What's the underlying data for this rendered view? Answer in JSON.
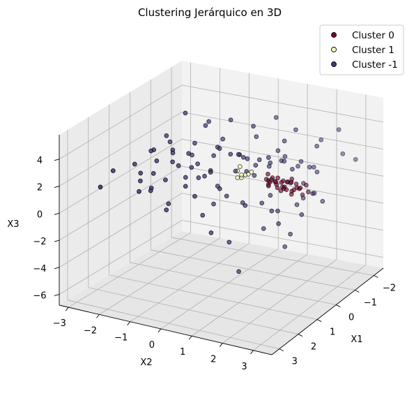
{
  "chart_data": {
    "type": "scatter",
    "title": "Clustering Jerárquico en 3D",
    "xlabel": "X1",
    "ylabel": "X2",
    "zlabel": "X3",
    "xlim": [
      -2.5,
      3.4
    ],
    "ylim": [
      -3.3,
      3.6
    ],
    "zlim": [
      -6.8,
      5.8
    ],
    "xticks": [
      -2,
      -1,
      0,
      1,
      2,
      3
    ],
    "yticks": [
      -3,
      -2,
      -1,
      0,
      1,
      2,
      3
    ],
    "zticks": [
      -6,
      -4,
      -2,
      0,
      2,
      4
    ],
    "xtick_labels": [
      "−2",
      "−1",
      "0",
      "1",
      "2",
      "3"
    ],
    "ytick_labels": [
      "−3",
      "−2",
      "−1",
      "0",
      "1",
      "2",
      "3"
    ],
    "ztick_labels": [
      "−6",
      "−4",
      "−2",
      "0",
      "2",
      "4"
    ],
    "legend_position": "top-right",
    "grid": true,
    "series": [
      {
        "name": "Cluster 0",
        "color": "#7f0030",
        "points": [
          [
            0.05,
            1.3,
            1.5
          ],
          [
            0.1,
            1.5,
            1.6
          ],
          [
            0.15,
            1.7,
            1.4
          ],
          [
            0.2,
            1.9,
            1.7
          ],
          [
            0.25,
            2.1,
            1.3
          ],
          [
            0.05,
            2.3,
            1.6
          ],
          [
            0.1,
            1.4,
            1.2
          ],
          [
            0.2,
            1.6,
            1.9
          ],
          [
            -0.05,
            1.8,
            1.5
          ],
          [
            0.3,
            2.0,
            1.5
          ],
          [
            0.15,
            2.2,
            1.8
          ],
          [
            0.0,
            2.4,
            1.3
          ],
          [
            0.25,
            1.5,
            1.7
          ],
          [
            0.1,
            1.7,
            1.1
          ],
          [
            -0.1,
            1.9,
            1.4
          ],
          [
            0.35,
            2.1,
            1.6
          ],
          [
            0.2,
            2.5,
            1.5
          ],
          [
            0.05,
            1.35,
            1.9
          ],
          [
            0.15,
            1.95,
            1.2
          ],
          [
            0.25,
            2.35,
            1.4
          ],
          [
            -0.05,
            1.55,
            1.3
          ],
          [
            0.3,
            1.75,
            1.8
          ],
          [
            0.1,
            2.05,
            1.7
          ],
          [
            0.2,
            2.25,
            1.2
          ],
          [
            0.0,
            2.6,
            1.6
          ],
          [
            0.4,
            1.6,
            1.5
          ],
          [
            0.15,
            1.85,
            1.0
          ],
          [
            0.05,
            2.15,
            1.9
          ],
          [
            0.25,
            2.45,
            1.6
          ],
          [
            0.1,
            1.45,
            1.4
          ],
          [
            0.3,
            2.3,
            1.1
          ],
          [
            0.35,
            2.7,
            1.3
          ],
          [
            0.0,
            1.65,
            1.7
          ],
          [
            0.2,
            2.8,
            1.4
          ]
        ]
      },
      {
        "name": "Cluster 1",
        "color": "#ffffbf",
        "points": [
          [
            0.0,
            0.3,
            1.6
          ],
          [
            0.1,
            0.5,
            1.5
          ],
          [
            0.2,
            0.7,
            1.7
          ],
          [
            -0.1,
            0.6,
            1.4
          ],
          [
            0.15,
            0.4,
            1.3
          ],
          [
            0.05,
            0.8,
            1.8
          ],
          [
            -0.05,
            0.35,
            1.9
          ],
          [
            0.25,
            0.6,
            1.5
          ]
        ]
      },
      {
        "name": "Cluster -1",
        "color": "#3b3a80",
        "points": [
          [
            0.2,
            -3.0,
            0.8
          ],
          [
            -0.3,
            -2.8,
            1.4
          ],
          [
            0.5,
            -2.6,
            0.6
          ],
          [
            0.0,
            -2.5,
            1.9
          ],
          [
            0.8,
            -2.4,
            0.4
          ],
          [
            -0.5,
            -2.3,
            2.1
          ],
          [
            0.3,
            -2.2,
            1.5
          ],
          [
            0.6,
            -2.1,
            0.9
          ],
          [
            -0.2,
            -2.0,
            1.7
          ],
          [
            1.0,
            -1.9,
            0.3
          ],
          [
            0.1,
            -1.8,
            2.3
          ],
          [
            -0.7,
            -1.7,
            1.2
          ],
          [
            0.4,
            -1.6,
            1.8
          ],
          [
            0.9,
            -1.5,
            1.0
          ],
          [
            -0.4,
            -1.4,
            2.5
          ],
          [
            0.2,
            -1.3,
            0.6
          ],
          [
            0.7,
            -1.2,
            2.0
          ],
          [
            -0.1,
            -1.1,
            1.4
          ],
          [
            0.5,
            -1.0,
            2.8
          ],
          [
            -0.6,
            -0.9,
            1.6
          ],
          [
            0.3,
            -0.8,
            0.9
          ],
          [
            0.8,
            -0.7,
            2.2
          ],
          [
            0.0,
            -0.6,
            1.1
          ],
          [
            -0.3,
            -0.5,
            2.6
          ],
          [
            0.6,
            -0.4,
            1.5
          ],
          [
            0.1,
            -0.3,
            3.2
          ],
          [
            -0.8,
            -0.2,
            1.8
          ],
          [
            0.4,
            -0.1,
            0.7
          ],
          [
            0.9,
            0.0,
            2.4
          ],
          [
            -0.2,
            0.1,
            1.3
          ],
          [
            0.2,
            0.2,
            3.0
          ],
          [
            -0.5,
            0.3,
            2.0
          ],
          [
            0.7,
            0.4,
            0.5
          ],
          [
            0.0,
            0.5,
            2.7
          ],
          [
            -0.4,
            0.6,
            1.0
          ],
          [
            0.5,
            0.7,
            3.5
          ],
          [
            0.3,
            0.8,
            2.1
          ],
          [
            -0.7,
            0.9,
            1.5
          ],
          [
            0.8,
            1.0,
            0.4
          ],
          [
            0.1,
            1.1,
            2.9
          ],
          [
            -0.3,
            1.2,
            2.3
          ],
          [
            0.6,
            1.3,
            3.1
          ],
          [
            0.0,
            1.4,
            0.3
          ],
          [
            -0.6,
            1.5,
            2.6
          ],
          [
            0.4,
            1.6,
            3.6
          ],
          [
            0.9,
            1.7,
            0.8
          ],
          [
            -0.1,
            1.8,
            2.9
          ],
          [
            0.2,
            1.9,
            3.3
          ],
          [
            -0.5,
            2.0,
            2.2
          ],
          [
            0.7,
            2.1,
            0.2
          ],
          [
            0.1,
            2.2,
            2.7
          ],
          [
            -0.2,
            2.3,
            3.0
          ],
          [
            0.5,
            2.4,
            2.2
          ],
          [
            0.0,
            2.5,
            0.6
          ],
          [
            -0.4,
            2.6,
            2.5
          ],
          [
            0.3,
            2.7,
            2.1
          ],
          [
            0.8,
            2.8,
            1.1
          ],
          [
            -0.1,
            2.9,
            2.6
          ],
          [
            0.2,
            3.0,
            1.4
          ],
          [
            0.6,
            3.2,
            1.9
          ],
          [
            0.4,
            3.4,
            1.2
          ],
          [
            -0.8,
            2.2,
            1.9
          ],
          [
            1.2,
            0.5,
            1.6
          ],
          [
            -1.0,
            1.0,
            2.4
          ],
          [
            1.4,
            -0.5,
            1.5
          ],
          [
            -1.2,
            -1.0,
            2.2
          ],
          [
            1.6,
            1.6,
            1.3
          ],
          [
            -1.4,
            0.0,
            2.6
          ],
          [
            1.8,
            2.6,
            1.6
          ],
          [
            -1.6,
            2.8,
            2.3
          ],
          [
            2.0,
            0.2,
            1.7
          ],
          [
            -1.8,
            -2.0,
            2.2
          ],
          [
            2.2,
            -1.5,
            1.4
          ],
          [
            -2.0,
            1.8,
            2.5
          ],
          [
            2.4,
            3.2,
            1.6
          ],
          [
            -1.5,
            3.3,
            2.2
          ],
          [
            1.5,
            3.4,
            1.4
          ],
          [
            2.6,
            -2.5,
            1.6
          ],
          [
            -0.9,
            -2.7,
            2.0
          ],
          [
            1.1,
            -3.1,
            1.1
          ],
          [
            0.0,
            -0.5,
            -1.2
          ],
          [
            0.5,
            1.5,
            -1.6
          ],
          [
            -0.5,
            0.5,
            4.5
          ],
          [
            0.2,
            2.0,
            4.8
          ],
          [
            1.0,
            -0.2,
            -0.9
          ],
          [
            -1.0,
            1.6,
            4.2
          ],
          [
            0.8,
            2.4,
            -2.2
          ],
          [
            -0.8,
            -1.2,
            3.8
          ],
          [
            1.3,
            2.9,
            -0.5
          ],
          [
            -1.3,
            -0.8,
            3.6
          ],
          [
            1.8,
            1.2,
            -1.4
          ],
          [
            -1.7,
            2.6,
            3.9
          ],
          [
            0.3,
            -2.4,
            -0.8
          ],
          [
            2.1,
            0.8,
            -0.6
          ],
          [
            -2.1,
            0.2,
            3.4
          ],
          [
            0.6,
            -1.6,
            -1.1
          ],
          [
            -0.4,
            2.7,
            4.1
          ],
          [
            1.6,
            -1.0,
            -0.3
          ],
          [
            2.4,
            1.9,
            -2.6
          ],
          [
            -1.1,
            -2.2,
            3.7
          ]
        ]
      }
    ]
  }
}
